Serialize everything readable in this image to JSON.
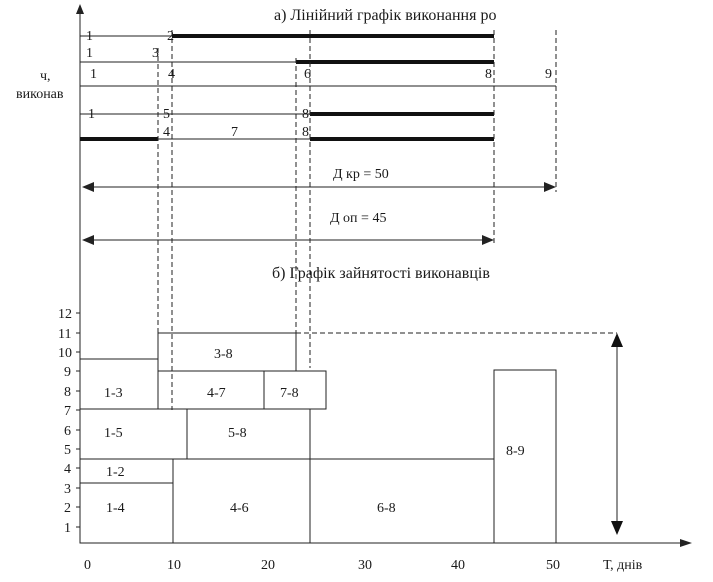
{
  "titles": {
    "part_a": "а) Лінійний графік виконання ро",
    "part_b": "б) Графік зайнятості виконавців"
  },
  "y_axis": {
    "label_line1": "ч,",
    "label_line2": "виконав",
    "ticks": [
      "1",
      "2",
      "3",
      "4",
      "5",
      "6",
      "7",
      "8",
      "9",
      "10",
      "11",
      "12"
    ]
  },
  "x_axis": {
    "label": "Т, днів",
    "ticks": [
      "0",
      "10",
      "20",
      "30",
      "40",
      "50"
    ]
  },
  "durations": {
    "critical": "Д кр = 50",
    "optimized": "Д оп = 45"
  },
  "gantt_nodes": [
    "1",
    "2",
    "1",
    "3",
    "1",
    "4",
    "6",
    "8",
    "9",
    "1",
    "5",
    "8",
    "4",
    "7",
    "8"
  ],
  "load_blocks": [
    "1-3",
    "3-8",
    "4-7",
    "7-8",
    "1-5",
    "5-8",
    "1-2",
    "1-4",
    "4-6",
    "6-8",
    "8-9"
  ]
}
